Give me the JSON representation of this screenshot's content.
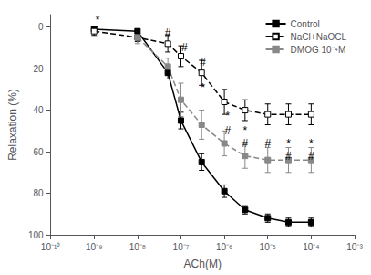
{
  "chart_data": {
    "type": "line",
    "xlabel": "ACh(M)",
    "ylabel": "Relaxation (%)",
    "log": "x",
    "xlim": [
      1e-10,
      0.001
    ],
    "xticks": [
      {
        "value": 1e-10,
        "label": "10⁻¹⁰"
      },
      {
        "value": 1e-09,
        "label": "10⁻⁹"
      },
      {
        "value": 1e-08,
        "label": "10⁻⁸"
      },
      {
        "value": 1e-07,
        "label": "10⁻⁷"
      },
      {
        "value": 1e-06,
        "label": "10⁻⁶"
      },
      {
        "value": 1e-05,
        "label": "10⁻⁵"
      },
      {
        "value": 0.0001,
        "label": "10⁻⁴"
      },
      {
        "value": 0.001,
        "label": "10⁻³"
      }
    ],
    "ylim": [
      100,
      -6
    ],
    "yticks": [
      0,
      20,
      40,
      60,
      80,
      100
    ],
    "grid": false,
    "legend": "upper right",
    "series": [
      {
        "name": "Control",
        "color": "#000000",
        "marker": "square",
        "line_style": "solid",
        "x": [
          1e-09,
          1e-08,
          5e-08,
          1e-07,
          3e-07,
          1e-06,
          3e-06,
          1e-05,
          3e-05,
          0.0001
        ],
        "values": [
          1,
          2,
          22,
          45,
          65,
          79,
          88,
          92,
          94,
          94
        ],
        "errors": [
          1,
          1,
          3,
          4,
          4,
          3,
          2,
          2,
          2,
          2
        ]
      },
      {
        "name": "NaCl+NaOCL",
        "color": "#000000",
        "marker": "open_square",
        "line_style": "dashed",
        "x": [
          1e-09,
          1e-08,
          5e-08,
          1e-07,
          3e-07,
          1e-06,
          3e-06,
          1e-05,
          3e-05,
          0.0001
        ],
        "values": [
          2,
          5,
          8,
          14,
          22,
          36,
          40,
          42,
          42,
          42
        ],
        "errors": [
          2,
          2,
          4,
          5,
          6,
          6,
          5,
          5,
          5,
          5
        ]
      },
      {
        "name": "DMOG 10⁻⁴M",
        "color": "#888888",
        "marker": "square",
        "line_style": "dashed",
        "x": [
          1e-08,
          5e-08,
          1e-07,
          3e-07,
          1e-06,
          3e-06,
          1e-05,
          3e-05,
          0.0001
        ],
        "values": [
          5,
          19,
          35,
          47,
          56,
          62,
          64,
          64,
          64
        ],
        "errors": [
          3,
          4,
          8,
          7,
          6,
          6,
          6,
          6,
          6
        ]
      }
    ],
    "annotations": [
      {
        "x": 1.2e-09,
        "y": -3.5,
        "text": "*"
      },
      {
        "x": 5e-08,
        "y": 3,
        "text": "#"
      },
      {
        "x": 1.2e-07,
        "y": 10,
        "text": "#"
      },
      {
        "x": 3.2e-07,
        "y": 17,
        "text": "#"
      },
      {
        "x": 3.2e-07,
        "y": 29,
        "text": "*"
      },
      {
        "x": 1.2e-06,
        "y": 43,
        "text": "*"
      },
      {
        "x": 1.2e-06,
        "y": 50,
        "text": "#"
      },
      {
        "x": 3e-06,
        "y": 50,
        "text": "*"
      },
      {
        "x": 3e-06,
        "y": 56,
        "text": "#"
      },
      {
        "x": 1e-05,
        "y": 56,
        "text": "#"
      },
      {
        "x": 3e-05,
        "y": 56,
        "text": "*"
      },
      {
        "x": 3e-05,
        "y": 62,
        "text": "#"
      },
      {
        "x": 0.0001,
        "y": 56,
        "text": "*"
      },
      {
        "x": 0.0001,
        "y": 62,
        "text": "#"
      }
    ]
  }
}
